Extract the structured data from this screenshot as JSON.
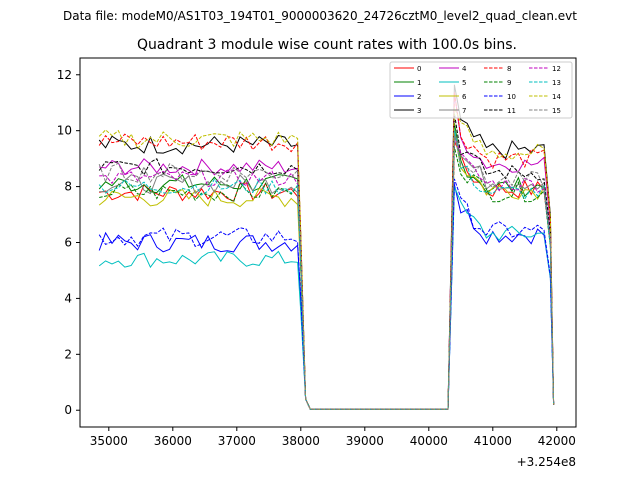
{
  "chart_data": {
    "type": "line",
    "suptitle": "Data file: modeM0/AS1T03_194T01_9000003620_24726cztM0_level2_quad_clean.evt",
    "title": "Quadrant 3 module wise count rates with 100.0s bins.",
    "xlabel": "",
    "ylabel": "",
    "offset_label": "+3.254e8",
    "xlim": [
      34550,
      42300
    ],
    "ylim": [
      -0.6,
      12.6
    ],
    "xticks": [
      35000,
      36000,
      37000,
      38000,
      39000,
      40000,
      41000,
      42000
    ],
    "yticks": [
      0,
      2,
      4,
      6,
      8,
      10,
      12
    ],
    "x_range": [
      34850,
      41950
    ],
    "gap_range": [
      38150,
      40300
    ],
    "series": [
      {
        "name": "0",
        "color": "#ff0000",
        "dash": "solid",
        "level": 7.8,
        "spread": 0.35,
        "after": 7.9
      },
      {
        "name": "1",
        "color": "#008000",
        "dash": "solid",
        "level": 8.1,
        "spread": 0.35,
        "after": 8.0
      },
      {
        "name": "2",
        "color": "#0000ff",
        "dash": "solid",
        "level": 6.0,
        "spread": 0.35,
        "after": 6.3
      },
      {
        "name": "3",
        "color": "#000000",
        "dash": "solid",
        "level": 9.5,
        "spread": 0.35,
        "after": 9.3
      },
      {
        "name": "4",
        "color": "#bf00bf",
        "dash": "solid",
        "level": 8.7,
        "spread": 0.3,
        "after": 8.8
      },
      {
        "name": "5",
        "color": "#00bfbf",
        "dash": "solid",
        "level": 5.4,
        "spread": 0.3,
        "after": 6.3
      },
      {
        "name": "6",
        "color": "#bfbf00",
        "dash": "solid",
        "level": 7.6,
        "spread": 0.35,
        "after": 7.9
      },
      {
        "name": "7",
        "color": "#808080",
        "dash": "solid",
        "level": 8.1,
        "spread": 0.35,
        "after": 8.2
      },
      {
        "name": "8",
        "color": "#ff0000",
        "dash": "dashed",
        "level": 9.6,
        "spread": 0.35,
        "after": 9.0
      },
      {
        "name": "9",
        "color": "#008000",
        "dash": "dashed",
        "level": 7.8,
        "spread": 0.35,
        "after": 7.8
      },
      {
        "name": "10",
        "color": "#0000ff",
        "dash": "dashed",
        "level": 6.2,
        "spread": 0.35,
        "after": 6.4
      },
      {
        "name": "11",
        "color": "#000000",
        "dash": "dashed",
        "level": 8.7,
        "spread": 0.3,
        "after": 8.5
      },
      {
        "name": "12",
        "color": "#bf00bf",
        "dash": "dashed",
        "level": 8.3,
        "spread": 0.3,
        "after": 8.1
      },
      {
        "name": "13",
        "color": "#00bfbf",
        "dash": "dashed",
        "level": 8.0,
        "spread": 0.3,
        "after": 7.8
      },
      {
        "name": "14",
        "color": "#bfbf00",
        "dash": "dashed",
        "level": 9.7,
        "spread": 0.35,
        "after": 9.2
      },
      {
        "name": "15",
        "color": "#808080",
        "dash": "dashed",
        "level": 8.5,
        "spread": 0.35,
        "after": 8.2
      }
    ],
    "legend_location": "upper right"
  }
}
